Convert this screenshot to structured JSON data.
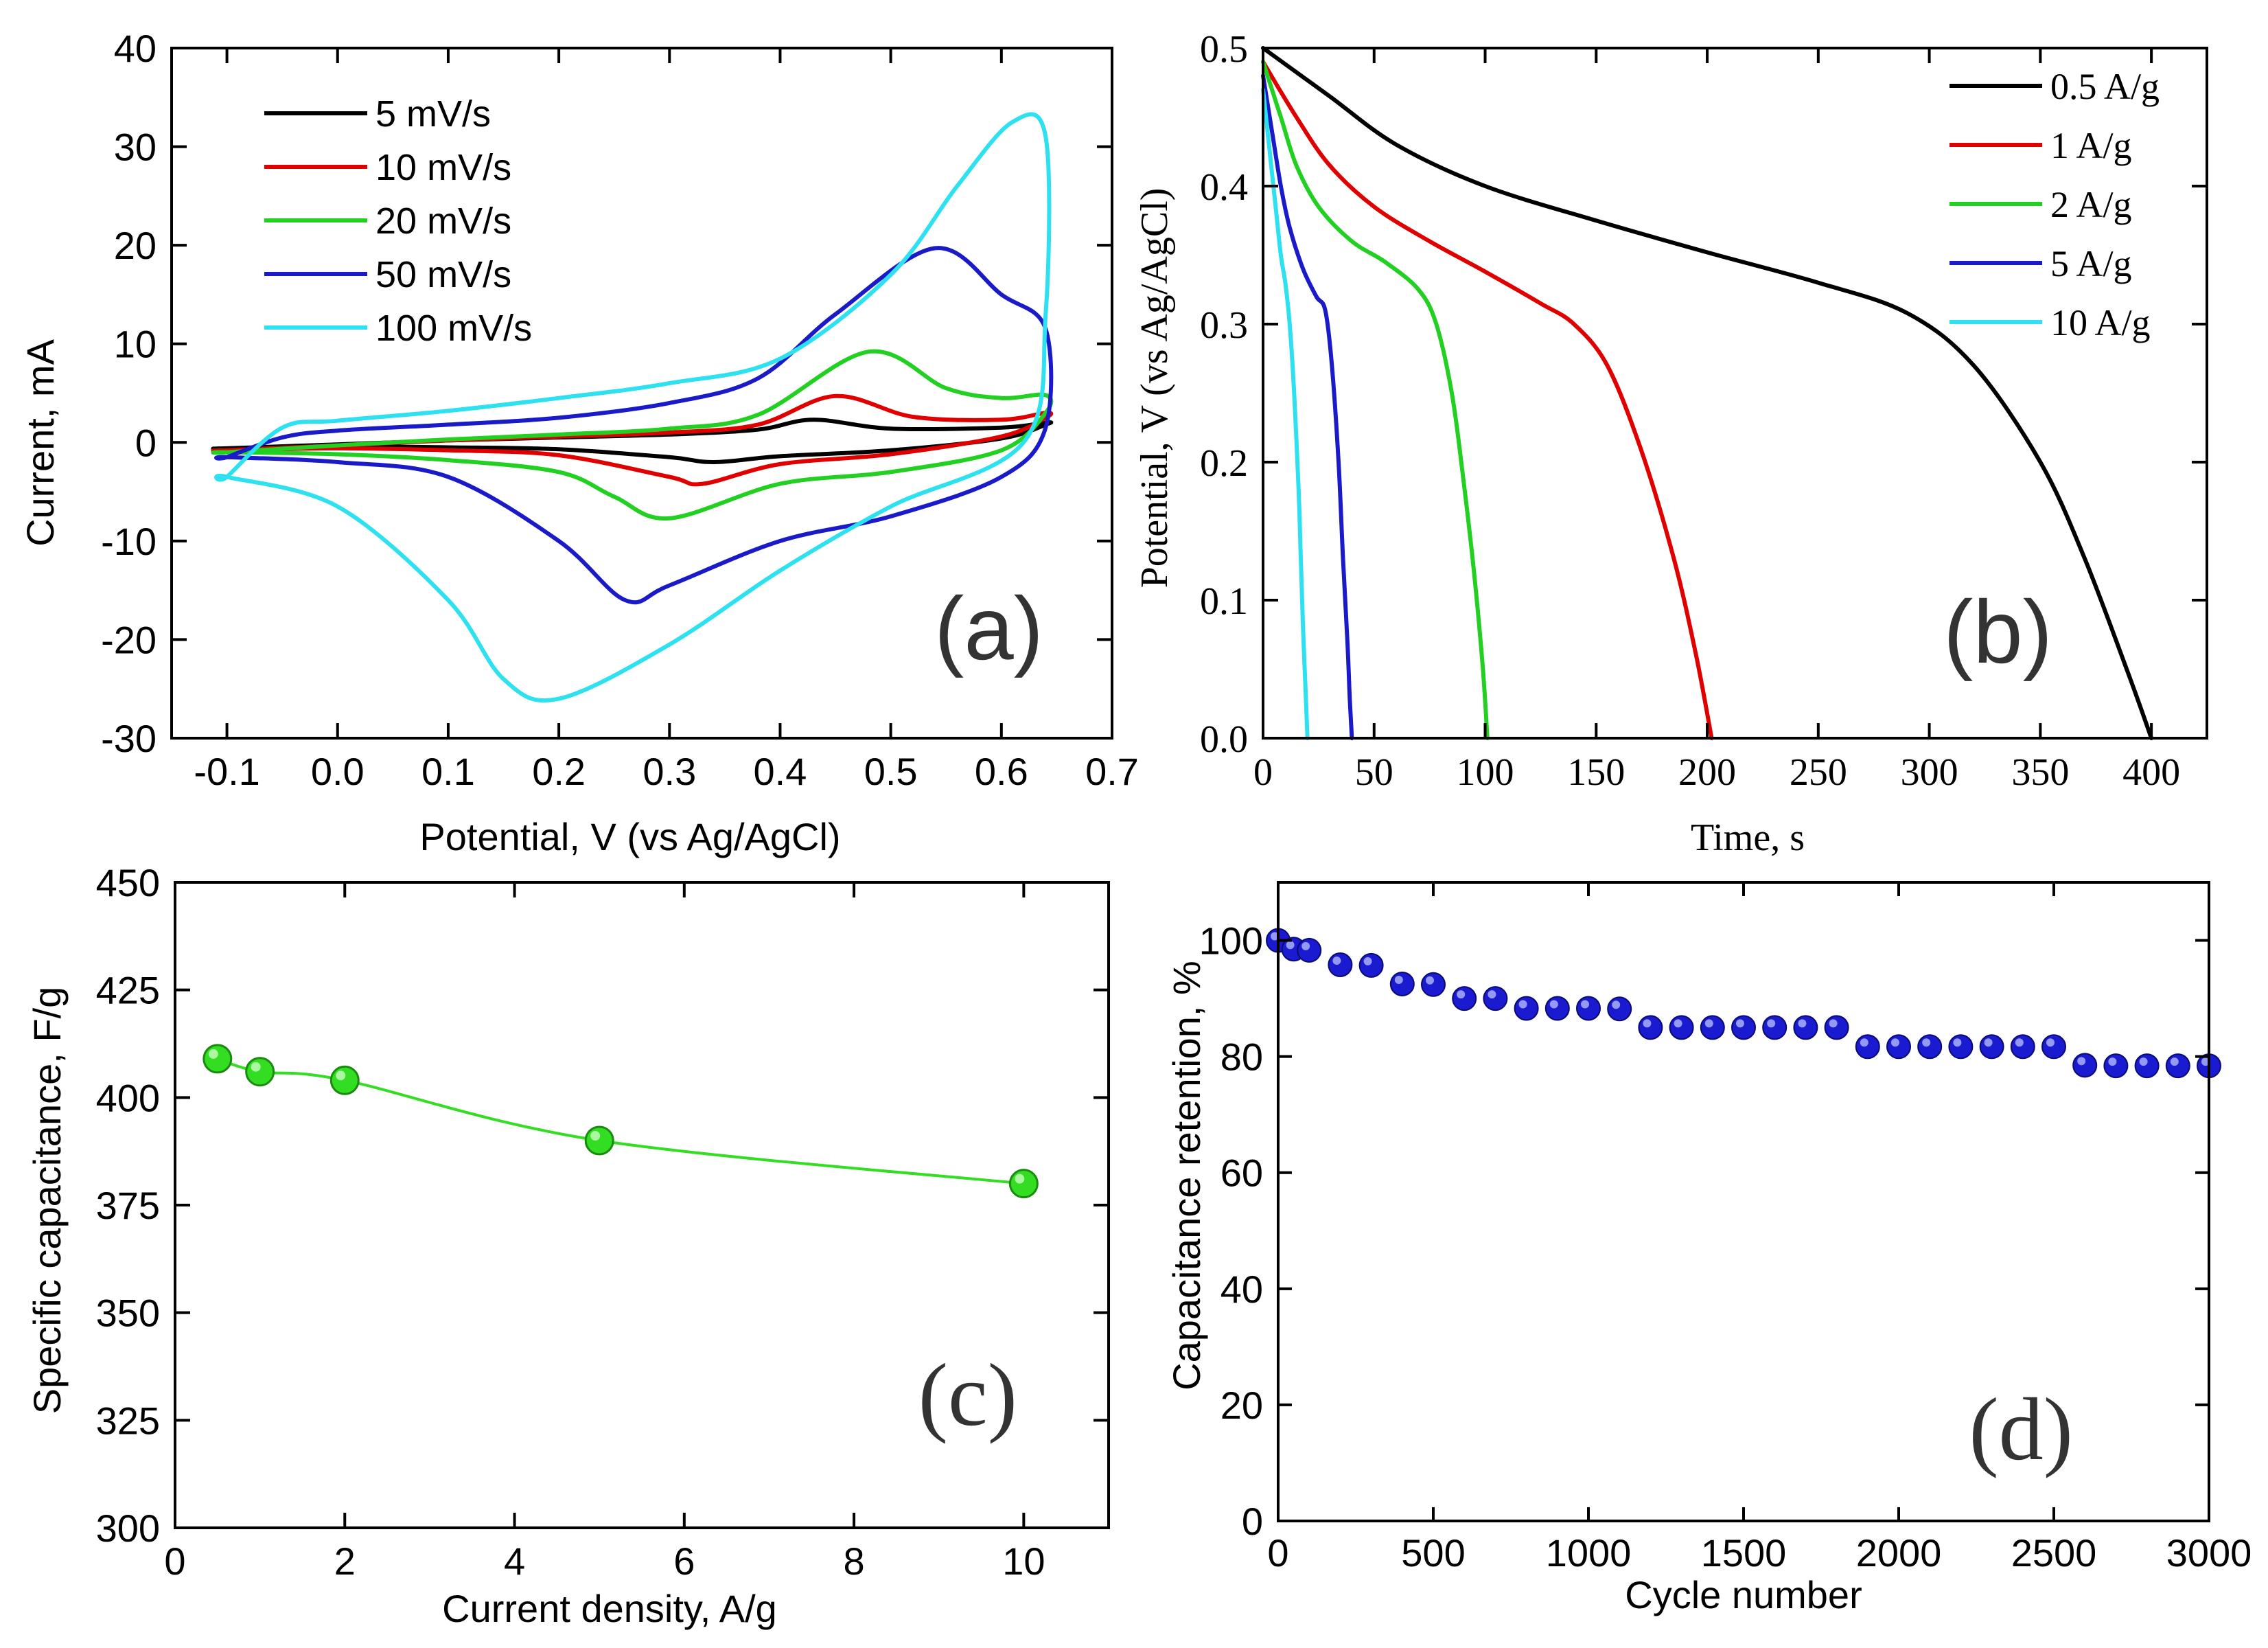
{
  "chart_data": [
    {
      "id": "a",
      "type": "line",
      "panel_label": "(a)",
      "xlabel": "Potential, V (vs  Ag/AgCl)",
      "ylabel": "Current, mA",
      "xlim": [
        -0.15,
        0.7
      ],
      "ylim": [
        -30,
        40
      ],
      "xticks": [
        -0.1,
        0.0,
        0.1,
        0.2,
        0.3,
        0.4,
        0.5,
        0.6,
        0.7
      ],
      "xtick_labels": [
        "-0.1",
        "0.0",
        "0.1",
        "0.2",
        "0.3",
        "0.4",
        "0.5",
        "0.6",
        "0.7"
      ],
      "yticks": [
        -30,
        -20,
        -10,
        0,
        10,
        20,
        30,
        40
      ],
      "ytick_labels": [
        "-30",
        "-20",
        "-10",
        "0",
        "10",
        "20",
        "30",
        "40"
      ],
      "legend_position": "top-left",
      "series": [
        {
          "name": "5 mV/s",
          "color": "#000000",
          "x": [
            -0.1,
            0.0,
            0.1,
            0.2,
            0.3,
            0.38,
            0.43,
            0.5,
            0.6,
            0.64,
            0.64,
            0.6,
            0.5,
            0.4,
            0.34,
            0.3,
            0.2,
            0.1,
            0.0,
            -0.1
          ],
          "y": [
            -0.6,
            -0.2,
            0.2,
            0.5,
            0.8,
            1.3,
            2.3,
            1.4,
            1.5,
            2.0,
            1.8,
            0.4,
            -0.8,
            -1.4,
            -2.0,
            -1.5,
            -0.7,
            -0.5,
            -0.4,
            -0.6
          ]
        },
        {
          "name": "10 mV/s",
          "color": "#e00000",
          "x": [
            -0.1,
            0.0,
            0.1,
            0.2,
            0.3,
            0.38,
            0.45,
            0.52,
            0.6,
            0.64,
            0.64,
            0.6,
            0.5,
            0.4,
            0.33,
            0.3,
            0.2,
            0.1,
            0.0,
            -0.1
          ],
          "y": [
            -0.8,
            -0.3,
            0.2,
            0.6,
            1.0,
            1.8,
            4.7,
            2.6,
            2.3,
            3.0,
            2.5,
            0.6,
            -1.2,
            -2.2,
            -4.2,
            -3.5,
            -1.3,
            -0.8,
            -0.6,
            -0.8
          ]
        },
        {
          "name": "20 mV/s",
          "color": "#22d022",
          "x": [
            -0.1,
            0.0,
            0.1,
            0.2,
            0.3,
            0.38,
            0.48,
            0.55,
            0.6,
            0.64,
            0.64,
            0.6,
            0.5,
            0.4,
            0.3,
            0.25,
            0.2,
            0.1,
            0.0,
            -0.1
          ],
          "y": [
            -1.0,
            -0.3,
            0.3,
            0.8,
            1.4,
            2.8,
            9.2,
            5.5,
            4.5,
            4.8,
            3.0,
            -0.8,
            -3.0,
            -4.2,
            -7.7,
            -5.5,
            -3.0,
            -1.8,
            -1.2,
            -1.0
          ]
        },
        {
          "name": "50 mV/s",
          "color": "#1a1ac8",
          "x": [
            -0.1,
            -0.05,
            0.0,
            0.1,
            0.2,
            0.3,
            0.38,
            0.45,
            0.54,
            0.6,
            0.64,
            0.64,
            0.6,
            0.5,
            0.4,
            0.3,
            0.26,
            0.2,
            0.1,
            0.0,
            -0.1
          ],
          "y": [
            -1.5,
            0.5,
            1.2,
            1.8,
            2.5,
            4.0,
            6.5,
            13.0,
            19.7,
            15.0,
            11.5,
            1.5,
            -3.5,
            -7.5,
            -10.0,
            -14.5,
            -16.0,
            -10.0,
            -3.5,
            -2.0,
            -1.5
          ]
        },
        {
          "name": "100 mV/s",
          "color": "#2de1f0",
          "x": [
            -0.1,
            -0.05,
            0.0,
            0.1,
            0.2,
            0.3,
            0.4,
            0.5,
            0.56,
            0.61,
            0.64,
            0.64,
            0.62,
            0.5,
            0.4,
            0.3,
            0.2,
            0.15,
            0.1,
            0.0,
            -0.1
          ],
          "y": [
            -3.5,
            1.5,
            2.2,
            3.2,
            4.5,
            6.0,
            8.5,
            17.0,
            26.0,
            32.5,
            31.0,
            13.0,
            0.0,
            -6.5,
            -13.0,
            -20.5,
            -26.0,
            -24.0,
            -16.0,
            -6.5,
            -3.5
          ]
        }
      ]
    },
    {
      "id": "b",
      "type": "line",
      "panel_label": "(b)",
      "xlabel": "Time, s",
      "ylabel": "Potential, V (vs  Ag/AgCl)",
      "xlim": [
        0,
        425
      ],
      "ylim": [
        0,
        0.5
      ],
      "xticks": [
        0,
        50,
        100,
        150,
        200,
        250,
        300,
        350,
        400
      ],
      "xtick_labels": [
        "0",
        "50",
        "100",
        "150",
        "200",
        "250",
        "300",
        "350",
        "400"
      ],
      "yticks": [
        0.0,
        0.1,
        0.2,
        0.3,
        0.4,
        0.5
      ],
      "ytick_labels": [
        "0.0",
        "0.1",
        "0.2",
        "0.3",
        "0.4",
        "0.5"
      ],
      "legend_position": "top-right",
      "series": [
        {
          "name": "0.5 A/g",
          "color": "#000000",
          "x": [
            0,
            30,
            60,
            100,
            150,
            200,
            250,
            290,
            320,
            350,
            370,
            390,
            400
          ],
          "y": [
            0.5,
            0.465,
            0.43,
            0.4,
            0.375,
            0.352,
            0.33,
            0.308,
            0.27,
            0.2,
            0.13,
            0.045,
            0.0
          ]
        },
        {
          "name": "1 A/g",
          "color": "#e00000",
          "x": [
            0,
            15,
            30,
            50,
            75,
            100,
            125,
            140,
            155,
            170,
            185,
            195,
            202
          ],
          "y": [
            0.49,
            0.45,
            0.415,
            0.385,
            0.36,
            0.338,
            0.315,
            0.3,
            0.27,
            0.21,
            0.13,
            0.06,
            0.0
          ]
        },
        {
          "name": "2 A/g",
          "color": "#22d022",
          "x": [
            0,
            8,
            15,
            25,
            40,
            55,
            70,
            78,
            85,
            90,
            95,
            99,
            101
          ],
          "y": [
            0.49,
            0.45,
            0.415,
            0.385,
            0.36,
            0.345,
            0.325,
            0.3,
            0.25,
            0.19,
            0.12,
            0.05,
            0.0
          ]
        },
        {
          "name": "5 A/g",
          "color": "#1a1ac8",
          "x": [
            0,
            4,
            8,
            12,
            18,
            24,
            28,
            31,
            34,
            36,
            38,
            39,
            40
          ],
          "y": [
            0.48,
            0.44,
            0.4,
            0.37,
            0.34,
            0.32,
            0.31,
            0.27,
            0.2,
            0.13,
            0.07,
            0.03,
            0.0
          ]
        },
        {
          "name": "10 A/g",
          "color": "#2de1f0",
          "x": [
            0,
            2,
            4,
            6,
            8,
            10,
            12,
            14,
            16,
            17,
            18,
            19,
            20
          ],
          "y": [
            0.47,
            0.44,
            0.41,
            0.38,
            0.35,
            0.33,
            0.3,
            0.25,
            0.18,
            0.13,
            0.08,
            0.04,
            0.0
          ]
        }
      ]
    },
    {
      "id": "c",
      "type": "line",
      "panel_label": "(c)",
      "xlabel": "Current density,  A/g",
      "ylabel": "Specific capacitance, F/g",
      "xlim": [
        0,
        11
      ],
      "ylim": [
        300,
        450
      ],
      "xticks": [
        0,
        2,
        4,
        6,
        8,
        10
      ],
      "xtick_labels": [
        "0",
        "2",
        "4",
        "6",
        "8",
        "10"
      ],
      "yticks": [
        300,
        325,
        350,
        375,
        400,
        425,
        450
      ],
      "ytick_labels": [
        "300",
        "325",
        "350",
        "375",
        "400",
        "425",
        "450"
      ],
      "series": [
        {
          "name": "Specific capacitance",
          "color": "#33dd22",
          "x": [
            0.5,
            1,
            2,
            5,
            10
          ],
          "y": [
            409,
            406,
            404,
            390,
            380
          ]
        }
      ]
    },
    {
      "id": "d",
      "type": "scatter",
      "panel_label": "(d)",
      "xlabel": "Cycle number",
      "ylabel": "Capacitance retention, %",
      "xlim": [
        0,
        3000
      ],
      "ylim": [
        0,
        110
      ],
      "xticks": [
        0,
        500,
        1000,
        1500,
        2000,
        2500,
        3000
      ],
      "xtick_labels": [
        "0",
        "500",
        "1000",
        "1500",
        "2000",
        "2500",
        "3000"
      ],
      "yticks": [
        0,
        20,
        40,
        60,
        80,
        100
      ],
      "ytick_labels": [
        "0",
        "20",
        "40",
        "60",
        "80",
        "100"
      ],
      "series": [
        {
          "name": "Capacitance retention",
          "color": "#1a1ad0",
          "x": [
            0,
            50,
            100,
            200,
            300,
            400,
            500,
            600,
            700,
            800,
            900,
            1000,
            1100,
            1200,
            1300,
            1400,
            1500,
            1600,
            1700,
            1800,
            1900,
            2000,
            2100,
            2200,
            2300,
            2400,
            2500,
            2600,
            2700,
            2800,
            2900,
            3000
          ],
          "y": [
            100,
            98.5,
            98.3,
            95.8,
            95.7,
            92.5,
            92.4,
            90.0,
            90.0,
            88.3,
            88.3,
            88.3,
            88.2,
            85.0,
            85.0,
            85.0,
            85.0,
            85.0,
            85.0,
            85.0,
            81.7,
            81.7,
            81.7,
            81.7,
            81.7,
            81.7,
            81.7,
            78.5,
            78.4,
            78.4,
            78.4,
            78.4
          ]
        }
      ]
    }
  ]
}
